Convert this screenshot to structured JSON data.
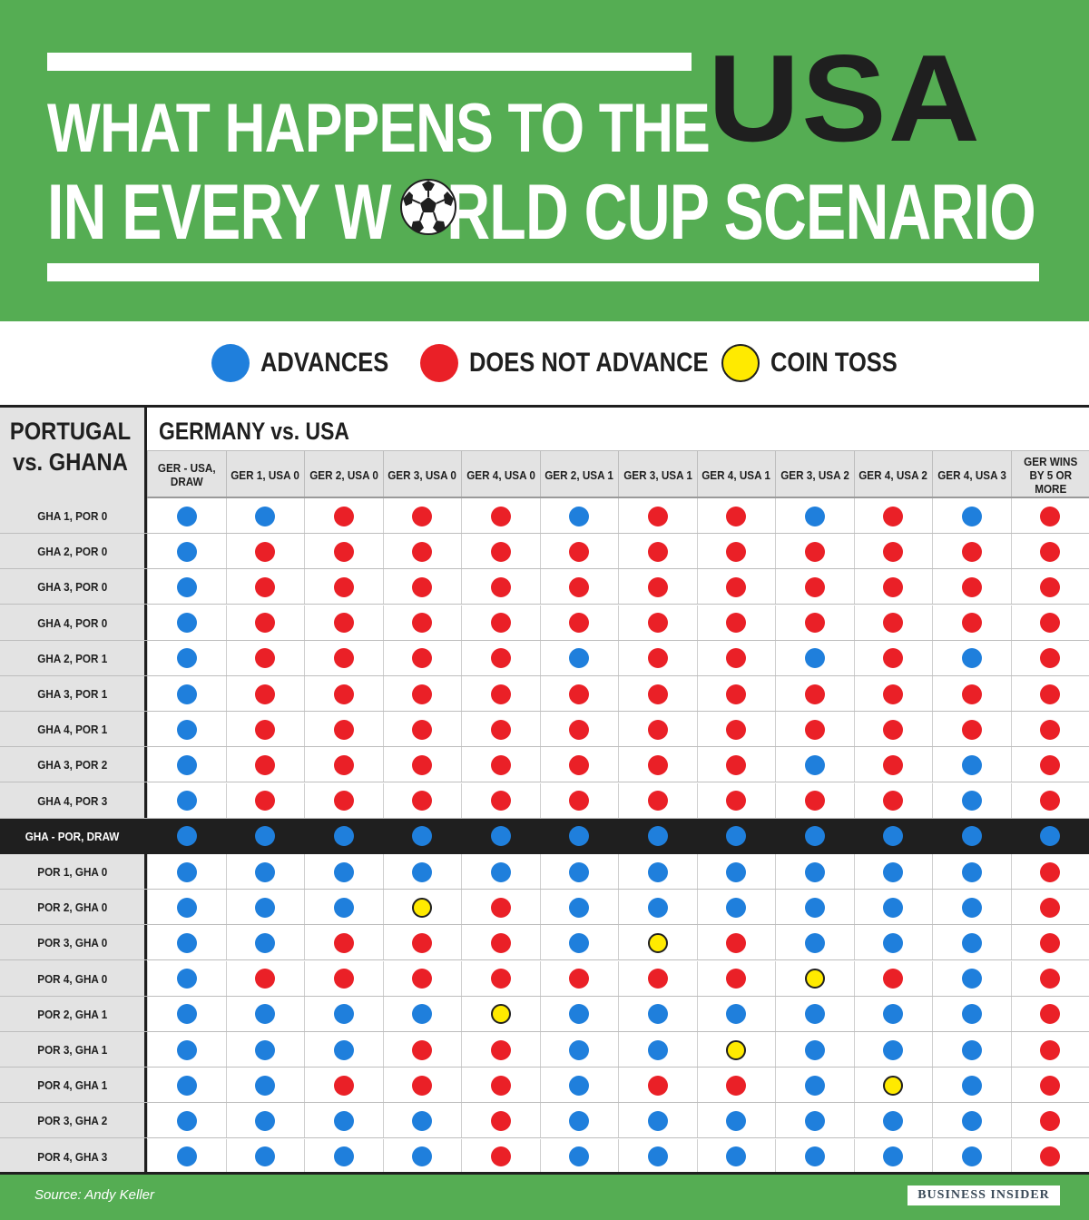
{
  "header": {
    "title_line1": "WHAT HAPPENS TO THE",
    "title_highlight": "USA",
    "title_line2a": "IN EVERY W",
    "title_line2b": "RLD CUP SCENARIO"
  },
  "legend": {
    "advances": "ADVANCES",
    "not_advance": "DOES NOT ADVANCE",
    "coin_toss": "COIN TOSS"
  },
  "colors": {
    "advances": "#1f7fdc",
    "not_advance": "#ea2027",
    "coin_toss": "#ffea00",
    "header_green": "#55ad53",
    "text_dark": "#1f1f1f"
  },
  "chart_data": {
    "type": "table",
    "row_group_title": "PORTUGAL vs. GHANA",
    "column_group_title": "GERMANY vs. USA",
    "columns": [
      "GER - USA, DRAW",
      "GER 1, USA 0",
      "GER 2, USA 0",
      "GER 3, USA 0",
      "GER 4, USA 0",
      "GER 2, USA 1",
      "GER 3, USA 1",
      "GER 4, USA 1",
      "GER 3, USA 2",
      "GER 4, USA 2",
      "GER 4, USA 3",
      "GER WINS BY 5 OR MORE"
    ],
    "rows": [
      {
        "label": "GHA 1, POR 0",
        "values": [
          "A",
          "A",
          "N",
          "N",
          "N",
          "A",
          "N",
          "N",
          "A",
          "N",
          "A",
          "N"
        ]
      },
      {
        "label": "GHA 2, POR 0",
        "values": [
          "A",
          "N",
          "N",
          "N",
          "N",
          "N",
          "N",
          "N",
          "N",
          "N",
          "N",
          "N"
        ]
      },
      {
        "label": "GHA 3, POR 0",
        "values": [
          "A",
          "N",
          "N",
          "N",
          "N",
          "N",
          "N",
          "N",
          "N",
          "N",
          "N",
          "N"
        ]
      },
      {
        "label": "GHA 4, POR 0",
        "values": [
          "A",
          "N",
          "N",
          "N",
          "N",
          "N",
          "N",
          "N",
          "N",
          "N",
          "N",
          "N"
        ]
      },
      {
        "label": "GHA 2, POR 1",
        "values": [
          "A",
          "N",
          "N",
          "N",
          "N",
          "A",
          "N",
          "N",
          "A",
          "N",
          "A",
          "N"
        ]
      },
      {
        "label": "GHA 3, POR 1",
        "values": [
          "A",
          "N",
          "N",
          "N",
          "N",
          "N",
          "N",
          "N",
          "N",
          "N",
          "N",
          "N"
        ]
      },
      {
        "label": "GHA 4, POR 1",
        "values": [
          "A",
          "N",
          "N",
          "N",
          "N",
          "N",
          "N",
          "N",
          "N",
          "N",
          "N",
          "N"
        ]
      },
      {
        "label": "GHA 3, POR 2",
        "values": [
          "A",
          "N",
          "N",
          "N",
          "N",
          "N",
          "N",
          "N",
          "A",
          "N",
          "A",
          "N"
        ]
      },
      {
        "label": "GHA 4, POR 3",
        "values": [
          "A",
          "N",
          "N",
          "N",
          "N",
          "N",
          "N",
          "N",
          "N",
          "N",
          "A",
          "N"
        ]
      },
      {
        "label": "GHA - POR, DRAW",
        "highlight": true,
        "values": [
          "A",
          "A",
          "A",
          "A",
          "A",
          "A",
          "A",
          "A",
          "A",
          "A",
          "A",
          "A"
        ]
      },
      {
        "label": "POR 1, GHA 0",
        "values": [
          "A",
          "A",
          "A",
          "A",
          "A",
          "A",
          "A",
          "A",
          "A",
          "A",
          "A",
          "N"
        ]
      },
      {
        "label": "POR 2, GHA 0",
        "values": [
          "A",
          "A",
          "A",
          "C",
          "N",
          "A",
          "A",
          "A",
          "A",
          "A",
          "A",
          "N"
        ]
      },
      {
        "label": "POR 3, GHA 0",
        "values": [
          "A",
          "A",
          "N",
          "N",
          "N",
          "A",
          "C",
          "N",
          "A",
          "A",
          "A",
          "N"
        ]
      },
      {
        "label": "POR 4, GHA 0",
        "values": [
          "A",
          "N",
          "N",
          "N",
          "N",
          "N",
          "N",
          "N",
          "C",
          "N",
          "A",
          "N"
        ]
      },
      {
        "label": "POR 2, GHA 1",
        "values": [
          "A",
          "A",
          "A",
          "A",
          "C",
          "A",
          "A",
          "A",
          "A",
          "A",
          "A",
          "N"
        ]
      },
      {
        "label": "POR 3, GHA 1",
        "values": [
          "A",
          "A",
          "A",
          "N",
          "N",
          "A",
          "A",
          "C",
          "A",
          "A",
          "A",
          "N"
        ]
      },
      {
        "label": "POR 4, GHA 1",
        "values": [
          "A",
          "A",
          "N",
          "N",
          "N",
          "A",
          "N",
          "N",
          "A",
          "C",
          "A",
          "N"
        ]
      },
      {
        "label": "POR 3, GHA 2",
        "values": [
          "A",
          "A",
          "A",
          "A",
          "N",
          "A",
          "A",
          "A",
          "A",
          "A",
          "A",
          "N"
        ]
      },
      {
        "label": "POR 4, GHA 3",
        "values": [
          "A",
          "A",
          "A",
          "A",
          "N",
          "A",
          "A",
          "A",
          "A",
          "A",
          "A",
          "N"
        ]
      }
    ]
  },
  "footer": {
    "source": "Source: Andy Keller",
    "brand": "BUSINESS INSIDER"
  }
}
